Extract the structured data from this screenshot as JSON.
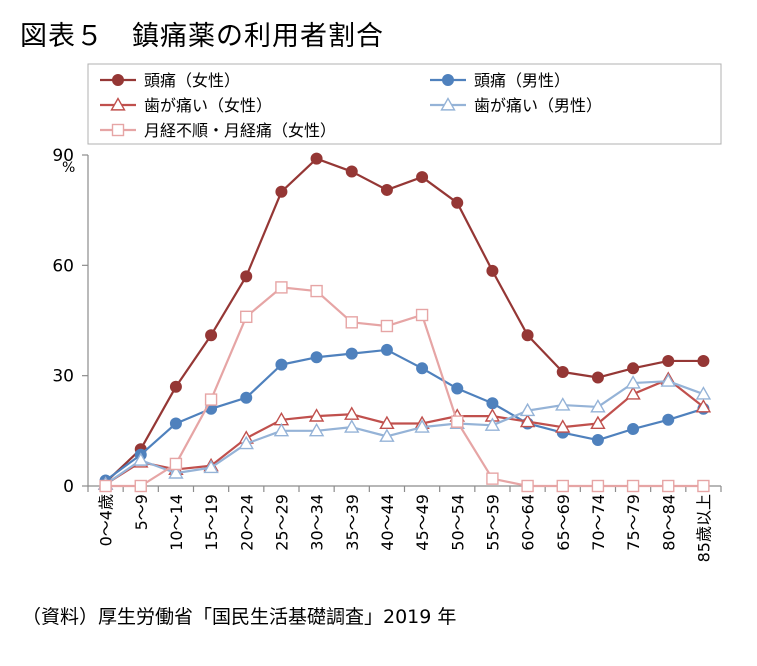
{
  "title": "図表５　鎮痛薬の利用者割合",
  "source": "（資料）厚生労働省「国民生活基礎調査」2019 年",
  "chart_data": {
    "type": "line",
    "ylabel": "%",
    "ylim": [
      0,
      90
    ],
    "yticks": [
      "0",
      "30",
      "60",
      "90"
    ],
    "grid": false,
    "legend_position": "top",
    "categories": [
      "0～4歳",
      "5～9",
      "10～14",
      "15～19",
      "20～24",
      "25～29",
      "30～34",
      "35～39",
      "40～44",
      "45～49",
      "50～54",
      "55～59",
      "60～64",
      "65～69",
      "70～74",
      "75～79",
      "80～84",
      "85歳以上"
    ],
    "series": [
      {
        "name": "頭痛（女性）",
        "color": "#953735",
        "marker": "circle-filled",
        "values": [
          1,
          10,
          27,
          41,
          57,
          80,
          89,
          85.5,
          80.5,
          84,
          77,
          58.5,
          41,
          31,
          29.5,
          32,
          34,
          34
        ]
      },
      {
        "name": "頭痛（男性）",
        "color": "#4f81bd",
        "marker": "circle-filled",
        "values": [
          1.5,
          8.5,
          17,
          21,
          24,
          33,
          35,
          36,
          37,
          32,
          26.5,
          22.5,
          17,
          14.5,
          12.5,
          15.5,
          18,
          21
        ]
      },
      {
        "name": "歯が痛い（女性）",
        "color": "#c0504d",
        "marker": "triangle-open",
        "values": [
          0.5,
          6.5,
          4.5,
          5.5,
          13,
          18,
          19,
          19.5,
          17,
          17,
          19,
          19,
          17.5,
          16,
          17,
          25,
          29,
          21.5
        ]
      },
      {
        "name": "歯が痛い（男性）",
        "color": "#95b3d7",
        "marker": "triangle-open",
        "values": [
          0.5,
          7,
          3.5,
          5,
          11.5,
          15,
          15,
          16,
          13.5,
          16,
          17,
          16.5,
          20.5,
          22,
          21.5,
          28,
          28.5,
          25
        ]
      },
      {
        "name": "月経不順・月経痛（女性）",
        "color": "#e6a5a5",
        "marker": "square-open",
        "values": [
          0,
          0,
          6,
          23.5,
          46,
          54,
          53,
          44.5,
          43.5,
          46.5,
          17.5,
          2,
          0,
          0,
          0,
          0,
          0,
          0
        ]
      }
    ]
  }
}
